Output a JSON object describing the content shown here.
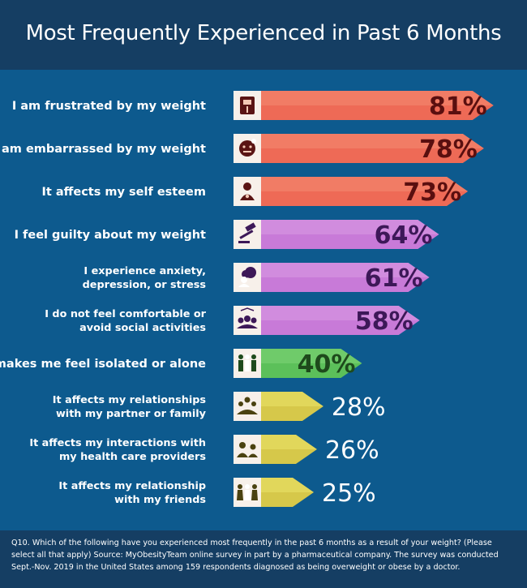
{
  "title": "Most Frequently Experienced in Past 6 Months",
  "footnote": "Q10. Which of the following have you experienced most frequently in the past 6 months as a result of your weight? (Please select all that apply) Source: MyObesityTeam online survey in part by a pharmaceutical company. The survey was conducted Sept.-Nov. 2019 in the United States among 159 respondents diagnosed as being overweight or obese by a doctor.",
  "colors": {
    "background": "#0d5a8e",
    "header": "#153e63",
    "red": "#ee6a56",
    "purple": "#c87ad8",
    "green": "#5cc05a",
    "yellow": "#d6c84a"
  },
  "chart_data": {
    "type": "bar",
    "orientation": "horizontal",
    "title": "Most Frequently Experienced in Past 6 Months",
    "xlim": [
      0,
      100
    ],
    "unit": "%",
    "grid": false,
    "legend": "none",
    "categories": [
      [
        "I am frustrated by my weight"
      ],
      [
        "I am embarrassed by my weight"
      ],
      [
        "It affects my self esteem"
      ],
      [
        "I feel guilty about my weight"
      ],
      [
        "I experience anxiety,",
        "depression, or stress"
      ],
      [
        "I do not feel comfortable or",
        "avoid social activities"
      ],
      [
        "It makes me feel isolated or alone"
      ],
      [
        "It affects my relationships",
        "with my partner or family"
      ],
      [
        "It affects my interactions with",
        "my health care providers"
      ],
      [
        "It affects my relationship",
        "with my friends"
      ]
    ],
    "values": [
      81,
      78,
      73,
      64,
      61,
      58,
      40,
      28,
      26,
      25
    ],
    "value_labels": [
      "81%",
      "78%",
      "73%",
      "64%",
      "61%",
      "58%",
      "40%",
      "28%",
      "26%",
      "25%"
    ],
    "bar_colors": [
      "red",
      "red",
      "red",
      "purple",
      "purple",
      "purple",
      "green",
      "yellow",
      "yellow",
      "yellow"
    ],
    "icons": [
      "scale-icon",
      "embarrassed-face-icon",
      "self-esteem-person-icon",
      "gavel-icon",
      "stress-cloud-icon",
      "social-group-icon",
      "isolated-people-icon",
      "family-icon",
      "doctor-patient-icon",
      "friends-icon"
    ]
  }
}
